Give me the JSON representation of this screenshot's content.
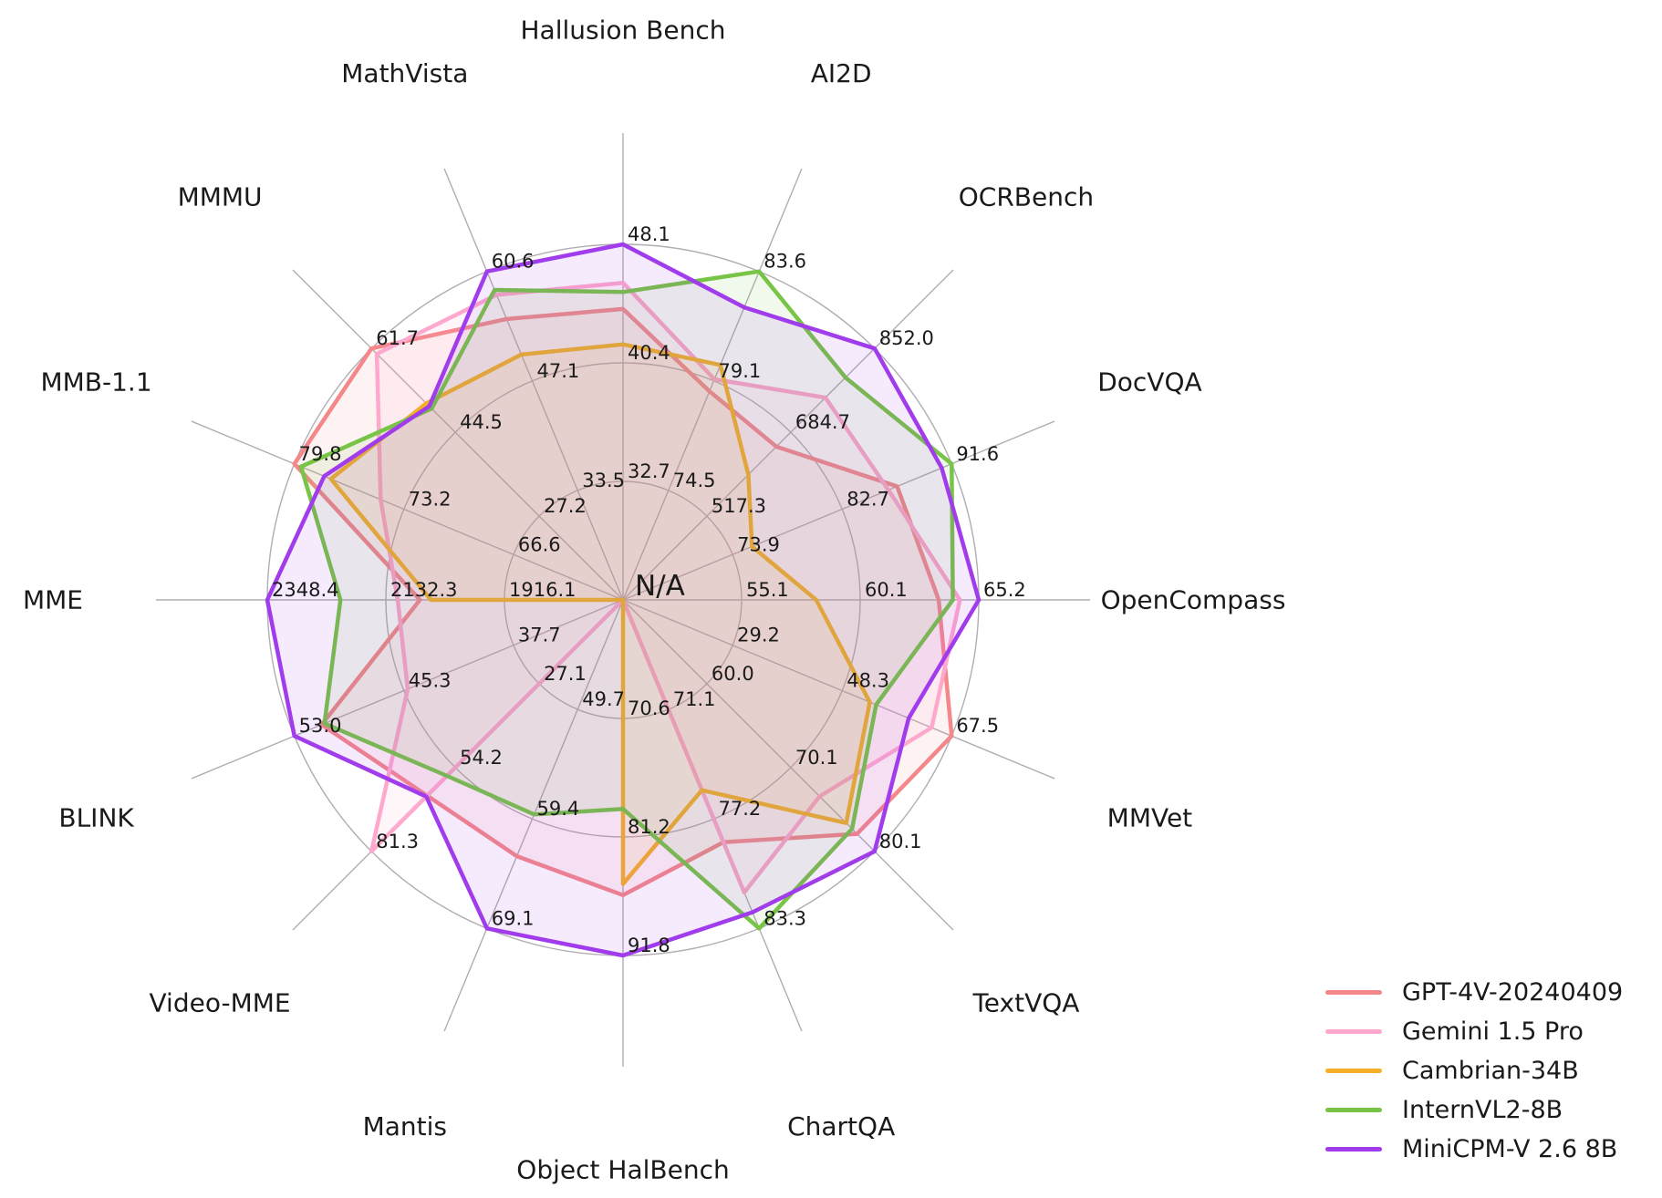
{
  "figure": {
    "background": "#FFFFFF",
    "grid_color": "#B1ADB3",
    "text_color": "#1A1A1A"
  },
  "chart_data": {
    "type": "radar",
    "title": "",
    "center_label": "N/A",
    "grid": "on",
    "rings": 3,
    "axes": [
      {
        "name": "Hallusion Bench",
        "ticks": [
          32.7,
          40.4,
          48.1
        ]
      },
      {
        "name": "AI2D",
        "ticks": [
          74.5,
          79.1,
          83.6
        ]
      },
      {
        "name": "OCRBench",
        "ticks": [
          517.3,
          684.7,
          852.0
        ]
      },
      {
        "name": "DocVQA",
        "ticks": [
          73.9,
          82.7,
          91.6
        ]
      },
      {
        "name": "OpenCompass",
        "ticks": [
          55.1,
          60.1,
          65.2
        ]
      },
      {
        "name": "MMVet",
        "ticks": [
          29.2,
          48.3,
          67.5
        ]
      },
      {
        "name": "TextVQA",
        "ticks": [
          60.0,
          70.1,
          80.1
        ]
      },
      {
        "name": "ChartQA",
        "ticks": [
          71.1,
          77.2,
          83.3
        ]
      },
      {
        "name": "Object HalBench",
        "ticks": [
          70.6,
          81.2,
          91.8
        ]
      },
      {
        "name": "Mantis",
        "ticks": [
          49.7,
          59.4,
          69.1
        ]
      },
      {
        "name": "Video-MME",
        "ticks": [
          27.1,
          54.2,
          81.3
        ]
      },
      {
        "name": "BLINK",
        "ticks": [
          37.7,
          45.3,
          53.0
        ]
      },
      {
        "name": "MME",
        "ticks": [
          1916.1,
          2132.3,
          2348.4
        ]
      },
      {
        "name": "MMB-1.1",
        "ticks": [
          66.6,
          73.2,
          79.8
        ]
      },
      {
        "name": "MMMU",
        "ticks": [
          27.2,
          44.5,
          61.7
        ]
      },
      {
        "name": "MathVista",
        "ticks": [
          33.5,
          47.1,
          60.6
        ]
      }
    ],
    "series": [
      {
        "name": "GPT-4V-20240409",
        "color": "#F48789",
        "values": [
          43.9,
          78.6,
          656.0,
          87.2,
          63.5,
          67.5,
          78.0,
          78.5,
          86.4,
          62.7,
          63.3,
          51.1,
          2070.2,
          79.8,
          61.7,
          54.7
        ]
      },
      {
        "name": "Gemini 1.5 Pro",
        "color": "#FFA8CD",
        "values": [
          45.6,
          79.1,
          754.0,
          86.5,
          64.4,
          64.0,
          73.5,
          81.3,
          null,
          null,
          81.3,
          45.1,
          2110.6,
          74.6,
          60.6,
          57.7
        ]
      },
      {
        "name": "Cambrian-34B",
        "color": "#F5AF28",
        "values": [
          41.6,
          79.7,
          600.0,
          75.5,
          58.3,
          53.2,
          76.7,
          75.6,
          85.4,
          null,
          null,
          null,
          2049.9,
          77.6,
          50.4,
          50.3
        ]
      },
      {
        "name": "InternVL2-8B",
        "color": "#78C446",
        "values": [
          45.0,
          83.6,
          794.0,
          91.6,
          64.1,
          54.3,
          77.4,
          83.3,
          78.7,
          59.0,
          56.9,
          50.9,
          2215.1,
          79.4,
          49.3,
          58.3
        ]
      },
      {
        "name": "MiniCPM-V 2.6 8B",
        "color": "#A03CEB",
        "values": [
          48.1,
          82.1,
          852.0,
          90.8,
          65.2,
          60.0,
          80.1,
          82.4,
          91.8,
          69.1,
          63.6,
          53.0,
          2348.4,
          78.0,
          49.8,
          60.6
        ]
      }
    ],
    "legend_position": "lower right",
    "fill_opacity": 0.1
  }
}
